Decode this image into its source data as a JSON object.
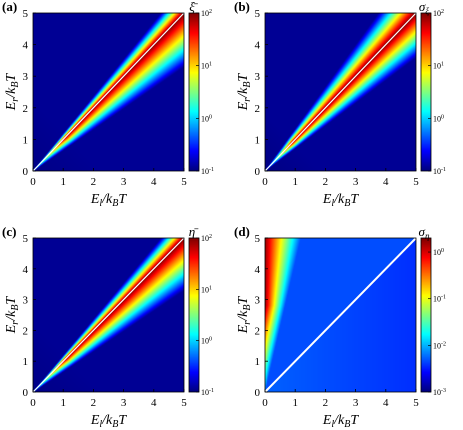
{
  "colormap": "jet",
  "chart_data": [
    {
      "type": "heatmap",
      "panel_label": "(a)",
      "title": "",
      "xlabel": "E_l/k_BT",
      "ylabel": "E_r/k_BT",
      "xlim": [
        0,
        5
      ],
      "ylim": [
        0,
        5
      ],
      "x_ticks": [
        "0",
        "1",
        "2",
        "3",
        "4",
        "5"
      ],
      "y_ticks": [
        "0",
        "1",
        "2",
        "3",
        "4",
        "5"
      ],
      "colorbar": {
        "title": "ξ̄",
        "scale": "log",
        "range": [
          0.1,
          100
        ],
        "ticks": [
          {
            "base": "10",
            "exp": "-1"
          },
          {
            "base": "10",
            "exp": "0"
          },
          {
            "base": "10",
            "exp": "1"
          },
          {
            "base": "10",
            "exp": "2"
          }
        ]
      },
      "description_values": {
        "diagonal_E_l_equals_E_r": "white line (maximum)",
        "top_left_corner": 0.1,
        "bottom_right_corner": 0.8,
        "near_diagonal": 100
      }
    },
    {
      "type": "heatmap",
      "panel_label": "(b)",
      "title": "",
      "xlabel": "E_l/k_BT",
      "ylabel": "E_r/k_BT",
      "xlim": [
        0,
        5
      ],
      "ylim": [
        0,
        5
      ],
      "x_ticks": [
        "0",
        "1",
        "2",
        "3",
        "4",
        "5"
      ],
      "y_ticks": [
        "0",
        "1",
        "2",
        "3",
        "4",
        "5"
      ],
      "colorbar": {
        "title": "σ_ξ",
        "scale": "log",
        "range": [
          0.1,
          100
        ],
        "ticks": [
          {
            "base": "10",
            "exp": "-1"
          },
          {
            "base": "10",
            "exp": "0"
          },
          {
            "base": "10",
            "exp": "1"
          },
          {
            "base": "10",
            "exp": "2"
          }
        ]
      },
      "description_values": {
        "diagonal_E_l_equals_E_r": "white line",
        "top_left_corner": 0.1,
        "bottom_right_corner": 0.2,
        "near_diagonal": 100
      }
    },
    {
      "type": "heatmap",
      "panel_label": "(c)",
      "title": "",
      "xlabel": "E_l/k_BT",
      "ylabel": "E_r/k_BT",
      "xlim": [
        0,
        5
      ],
      "ylim": [
        0,
        5
      ],
      "x_ticks": [
        "0",
        "1",
        "2",
        "3",
        "4",
        "5"
      ],
      "y_ticks": [
        "0",
        "1",
        "2",
        "3",
        "4",
        "5"
      ],
      "colorbar": {
        "title": "η̄",
        "scale": "log",
        "range": [
          0.1,
          100
        ],
        "ticks": [
          {
            "base": "10",
            "exp": "-1"
          },
          {
            "base": "10",
            "exp": "0"
          },
          {
            "base": "10",
            "exp": "1"
          },
          {
            "base": "10",
            "exp": "2"
          }
        ]
      },
      "description_values": {
        "diagonal_E_l_equals_E_r": "white line (maximum)",
        "top_left_corner": 0.1,
        "bottom_right_corner": 0.8,
        "near_diagonal": 100
      }
    },
    {
      "type": "heatmap",
      "panel_label": "(d)",
      "title": "",
      "xlabel": "E_l/k_BT",
      "ylabel": "E_r/k_BT",
      "xlim": [
        0,
        5
      ],
      "ylim": [
        0,
        5
      ],
      "x_ticks": [
        "0",
        "1",
        "2",
        "3",
        "4",
        "5"
      ],
      "y_ticks": [
        "0",
        "1",
        "2",
        "3",
        "4",
        "5"
      ],
      "colorbar": {
        "title": "σ_η",
        "scale": "log",
        "range": [
          0.001,
          2
        ],
        "ticks": [
          {
            "base": "10",
            "exp": "-3"
          },
          {
            "base": "10",
            "exp": "-2"
          },
          {
            "base": "10",
            "exp": "-1"
          },
          {
            "base": "10",
            "exp": "0"
          }
        ]
      },
      "description_values": {
        "diagonal_E_l_equals_E_r": "white line",
        "left_edge_top": 2,
        "top_left_corner": 1.5,
        "bottom_right_corner": 0.004,
        "broad_background": 0.004
      }
    }
  ]
}
